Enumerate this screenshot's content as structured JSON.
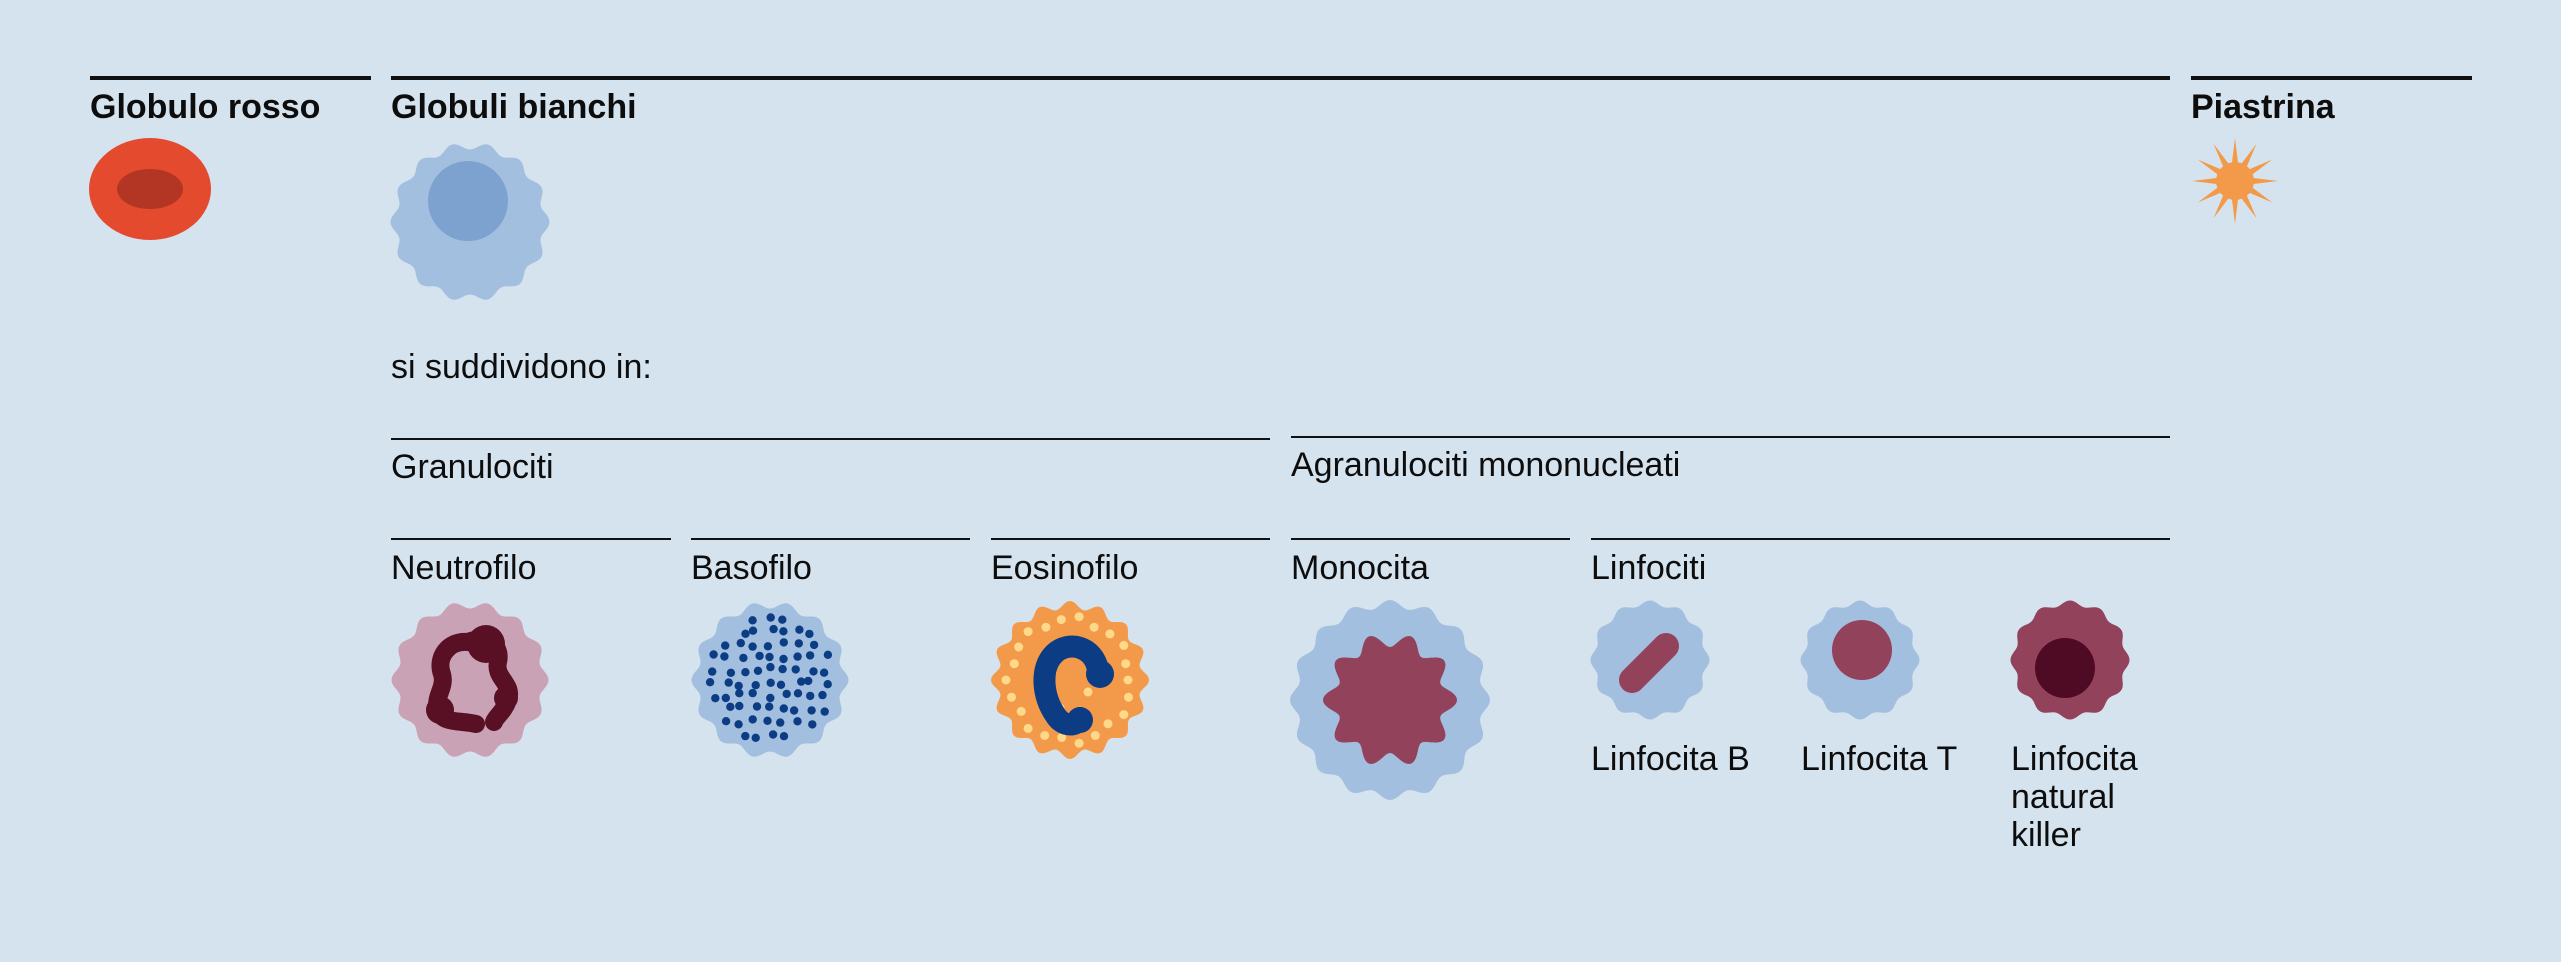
{
  "red_cell": {
    "title": "Globulo rosso"
  },
  "white_cells": {
    "title": "Globuli bianchi",
    "subtitle": "si suddividono in:",
    "granulocytes": {
      "title": "Granulociti",
      "types": [
        "Neutrofilo",
        "Basofilo",
        "Eosinofilo"
      ]
    },
    "agranulocytes": {
      "title": "Agranulociti mononucleati",
      "monocyte": "Monocita",
      "lymphocytes": {
        "title": "Linfociti",
        "types": [
          "Linfocita B",
          "Linfocita T",
          "Linfocita natural killer"
        ]
      }
    }
  },
  "platelet": {
    "title": "Piastrina"
  },
  "colors": {
    "background": "#d5e3ee",
    "red_cell": "#e34a2e",
    "red_cell_center": "#b33524",
    "white_cell": "#a3bfdf",
    "white_nucleus": "#7da2cf",
    "platelet": "#f39a4a",
    "neutrophil_body": "#c9a2b5",
    "neutrophil_nucleus": "#5a1024",
    "basophil_dots": "#0c3d84",
    "eosinophil_body": "#f39a4a",
    "eosinophil_granules": "#ffd98a",
    "eosinophil_nucleus": "#0c3d84",
    "monocyte_nucleus": "#93425c",
    "nk_body": "#93425c",
    "nk_nucleus": "#4f0b24"
  },
  "icons": [
    "red-blood-cell-icon",
    "white-blood-cell-icon",
    "platelet-icon",
    "neutrophil-icon",
    "basophil-icon",
    "eosinophil-icon",
    "monocyte-icon",
    "b-lymphocyte-icon",
    "t-lymphocyte-icon",
    "nk-cell-icon"
  ]
}
